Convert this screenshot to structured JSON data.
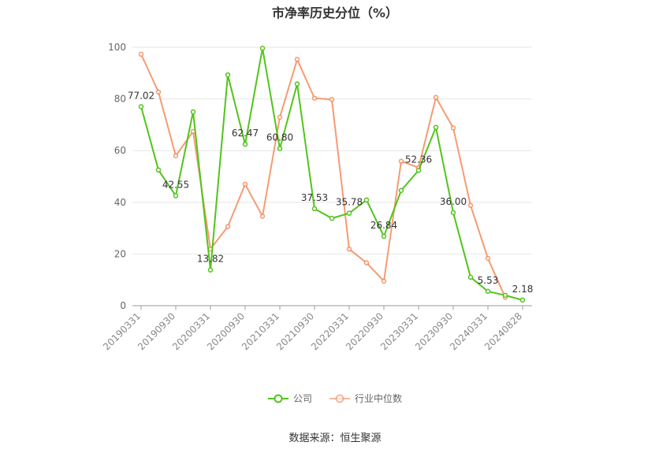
{
  "title": "市净率历史分位（%）",
  "source": "数据来源：恒生聚源",
  "legend": [
    {
      "label": "公司",
      "color": "#52c41a"
    },
    {
      "label": "行业中位数",
      "color": "#f5895a"
    }
  ],
  "chart_data": {
    "type": "line",
    "title": "市净率历史分位（%）",
    "xlabel": "",
    "ylabel": "",
    "ylim": [
      0,
      100
    ],
    "yticks": [
      0,
      20,
      40,
      60,
      80,
      100
    ],
    "grid": true,
    "legend_position": "bottom",
    "x": [
      "20190331",
      "20190630",
      "20190930",
      "20191231",
      "20200331",
      "20200630",
      "20200930",
      "20201231",
      "20210331",
      "20210630",
      "20210930",
      "20211231",
      "20220331",
      "20220630",
      "20220930",
      "20221231",
      "20230331",
      "20230630",
      "20230930",
      "20231231",
      "20240331",
      "20240630",
      "20240828"
    ],
    "xtick_labels": [
      "20190331",
      "20190930",
      "20200331",
      "20200930",
      "20210331",
      "20210930",
      "20220331",
      "20220930",
      "20230331",
      "20230930",
      "20240331",
      "20240828"
    ],
    "series": [
      {
        "name": "公司",
        "color": "#52c41a",
        "values": [
          77.02,
          52.5,
          42.55,
          75.0,
          13.82,
          89.3,
          62.47,
          99.6,
          60.8,
          85.8,
          37.53,
          33.8,
          35.78,
          40.9,
          26.84,
          44.6,
          52.36,
          69.0,
          36.0,
          11.0,
          5.53,
          4.0,
          2.18
        ]
      },
      {
        "name": "行业中位数",
        "color": "#f5895a",
        "values": [
          97.3,
          82.7,
          58.0,
          67.4,
          21.9,
          30.6,
          47.0,
          34.6,
          72.9,
          95.3,
          80.3,
          79.8,
          21.9,
          16.6,
          9.5,
          55.9,
          53.4,
          80.6,
          68.8,
          38.8,
          18.3,
          3.2,
          null
        ]
      }
    ],
    "data_labels": [
      {
        "index": 0,
        "text": "77.02"
      },
      {
        "index": 2,
        "text": "42.55"
      },
      {
        "index": 4,
        "text": "13.82"
      },
      {
        "index": 6,
        "text": "62.47"
      },
      {
        "index": 8,
        "text": "60.80"
      },
      {
        "index": 10,
        "text": "37.53"
      },
      {
        "index": 12,
        "text": "35.78"
      },
      {
        "index": 14,
        "text": "26.84"
      },
      {
        "index": 16,
        "text": "52.36"
      },
      {
        "index": 18,
        "text": "36.00"
      },
      {
        "index": 20,
        "text": "5.53"
      },
      {
        "index": 22,
        "text": "2.18"
      }
    ]
  }
}
